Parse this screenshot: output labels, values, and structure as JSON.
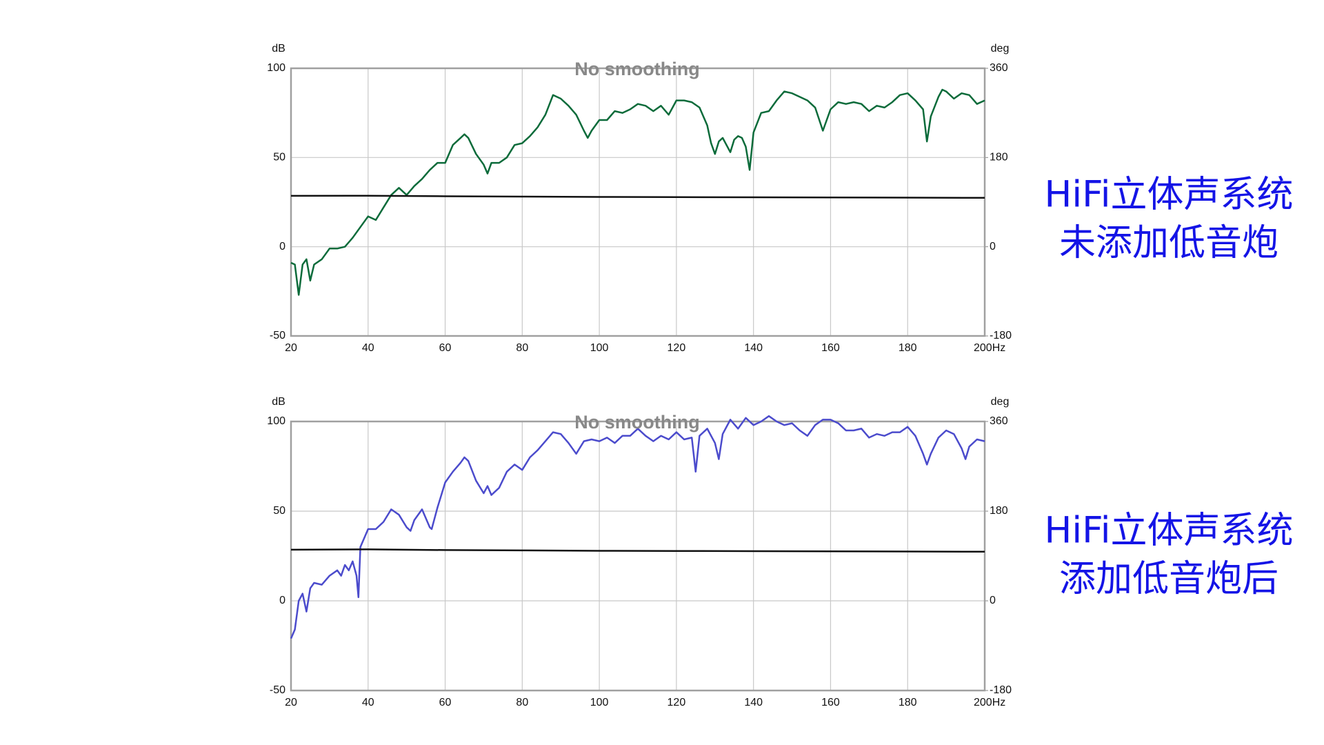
{
  "chart_data": [
    {
      "type": "line",
      "annotation": "No smoothing",
      "ylabel": "dB",
      "y2label": "deg",
      "side_label": [
        "HiFi立体声系统",
        "未添加低音炮"
      ],
      "xlim": [
        20,
        200
      ],
      "xticks": [
        20,
        40,
        60,
        80,
        100,
        120,
        140,
        160,
        180,
        {
          "value": 200,
          "label": "200Hz"
        }
      ],
      "ylim": [
        -50,
        100
      ],
      "yticks": [
        100,
        50,
        0,
        -50
      ],
      "y2lim": [
        -180,
        360
      ],
      "y2ticks": [
        360,
        180,
        0,
        -180
      ],
      "grid": true,
      "series": [
        {
          "color": "#0b6b3a",
          "x": [
            20,
            21,
            22,
            23,
            24,
            25,
            26,
            28,
            30,
            32,
            34,
            36,
            38,
            40,
            42,
            44,
            46,
            48,
            50,
            52,
            54,
            56,
            58,
            60,
            62,
            64,
            65,
            66,
            68,
            70,
            71,
            72,
            74,
            76,
            78,
            80,
            82,
            84,
            86,
            88,
            90,
            92,
            94,
            96,
            97,
            98,
            100,
            102,
            104,
            106,
            108,
            110,
            112,
            114,
            116,
            118,
            120,
            122,
            124,
            126,
            128,
            129,
            130,
            131,
            132,
            133,
            134,
            135,
            136,
            137,
            138,
            139,
            140,
            142,
            144,
            146,
            148,
            150,
            152,
            154,
            156,
            158,
            160,
            162,
            164,
            166,
            168,
            170,
            172,
            174,
            176,
            178,
            180,
            182,
            184,
            185,
            186,
            188,
            189,
            190,
            192,
            194,
            196,
            198,
            200
          ],
          "values": [
            -9,
            -10,
            -27,
            -10,
            -7,
            -19,
            -10,
            -7,
            -1,
            -1,
            0,
            5,
            11,
            17,
            15,
            22,
            29,
            33,
            29,
            34,
            38,
            43,
            47,
            47,
            57,
            61,
            63,
            61,
            52,
            46,
            41,
            47,
            47,
            50,
            57,
            58,
            62,
            67,
            74,
            85,
            83,
            79,
            74,
            65,
            61,
            65,
            71,
            71,
            76,
            75,
            77,
            80,
            79,
            76,
            79,
            74,
            82,
            82,
            81,
            78,
            68,
            58,
            52,
            59,
            61,
            57,
            53,
            60,
            62,
            61,
            56,
            43,
            64,
            75,
            76,
            82,
            87,
            86,
            84,
            82,
            78,
            65,
            77,
            81,
            80,
            81,
            80,
            76,
            79,
            78,
            81,
            85,
            86,
            82,
            77,
            59,
            73,
            84,
            88,
            87,
            83,
            86,
            85,
            80,
            82
          ]
        },
        {
          "color": "#111111",
          "x": [
            20,
            40,
            60,
            80,
            100,
            120,
            140,
            160,
            180,
            200
          ],
          "values": [
            28.5,
            28.6,
            28.3,
            28.1,
            27.9,
            27.8,
            27.7,
            27.6,
            27.5,
            27.4
          ]
        }
      ]
    },
    {
      "type": "line",
      "annotation": "No smoothing",
      "ylabel": "dB",
      "y2label": "deg",
      "side_label": [
        "HiFi立体声系统",
        "添加低音炮后"
      ],
      "xlim": [
        20,
        200
      ],
      "xticks": [
        20,
        40,
        60,
        80,
        100,
        120,
        140,
        160,
        180,
        {
          "value": 200,
          "label": "200Hz"
        }
      ],
      "ylim": [
        -50,
        100
      ],
      "yticks": [
        100,
        50,
        0,
        -50
      ],
      "y2lim": [
        -180,
        360
      ],
      "y2ticks": [
        360,
        180,
        0,
        -180
      ],
      "grid": true,
      "series": [
        {
          "color": "#4b4bcc",
          "x": [
            20,
            21,
            22,
            23,
            24,
            25,
            26,
            28,
            30,
            32,
            33,
            34,
            35,
            36,
            37,
            37.5,
            38,
            40,
            42,
            44,
            46,
            48,
            50,
            51,
            52,
            54,
            56,
            56.5,
            58,
            60,
            62,
            64,
            65,
            66,
            68,
            70,
            71,
            72,
            74,
            76,
            78,
            80,
            82,
            84,
            86,
            88,
            90,
            92,
            94,
            96,
            98,
            100,
            102,
            104,
            106,
            108,
            110,
            112,
            114,
            116,
            118,
            120,
            122,
            124,
            125,
            126,
            128,
            130,
            131,
            132,
            134,
            136,
            138,
            140,
            142,
            144,
            146,
            148,
            150,
            152,
            154,
            156,
            158,
            160,
            162,
            164,
            166,
            168,
            170,
            172,
            174,
            176,
            178,
            180,
            182,
            184,
            185,
            186,
            188,
            190,
            192,
            194,
            195,
            196,
            198,
            200
          ],
          "values": [
            -21,
            -16,
            0,
            4,
            -6,
            7,
            10,
            9,
            14,
            17,
            14,
            20,
            17,
            22,
            14,
            2,
            30,
            40,
            40,
            44,
            51,
            48,
            41,
            39,
            45,
            51,
            41,
            40,
            52,
            66,
            72,
            77,
            80,
            78,
            67,
            60,
            64,
            59,
            63,
            72,
            76,
            73,
            80,
            84,
            89,
            94,
            93,
            88,
            82,
            89,
            90,
            89,
            91,
            88,
            92,
            92,
            96,
            92,
            89,
            92,
            90,
            94,
            90,
            91,
            72,
            92,
            96,
            88,
            79,
            93,
            101,
            96,
            102,
            98,
            100,
            103,
            100,
            98,
            99,
            95,
            92,
            98,
            101,
            101,
            99,
            95,
            95,
            96,
            91,
            93,
            92,
            94,
            94,
            97,
            92,
            82,
            76,
            82,
            91,
            95,
            93,
            85,
            79,
            86,
            90,
            89
          ]
        },
        {
          "color": "#111111",
          "x": [
            20,
            40,
            60,
            80,
            100,
            120,
            140,
            160,
            180,
            200
          ],
          "values": [
            28.5,
            28.7,
            28.3,
            28.1,
            27.9,
            27.8,
            27.7,
            27.6,
            27.5,
            27.4
          ]
        }
      ]
    }
  ]
}
